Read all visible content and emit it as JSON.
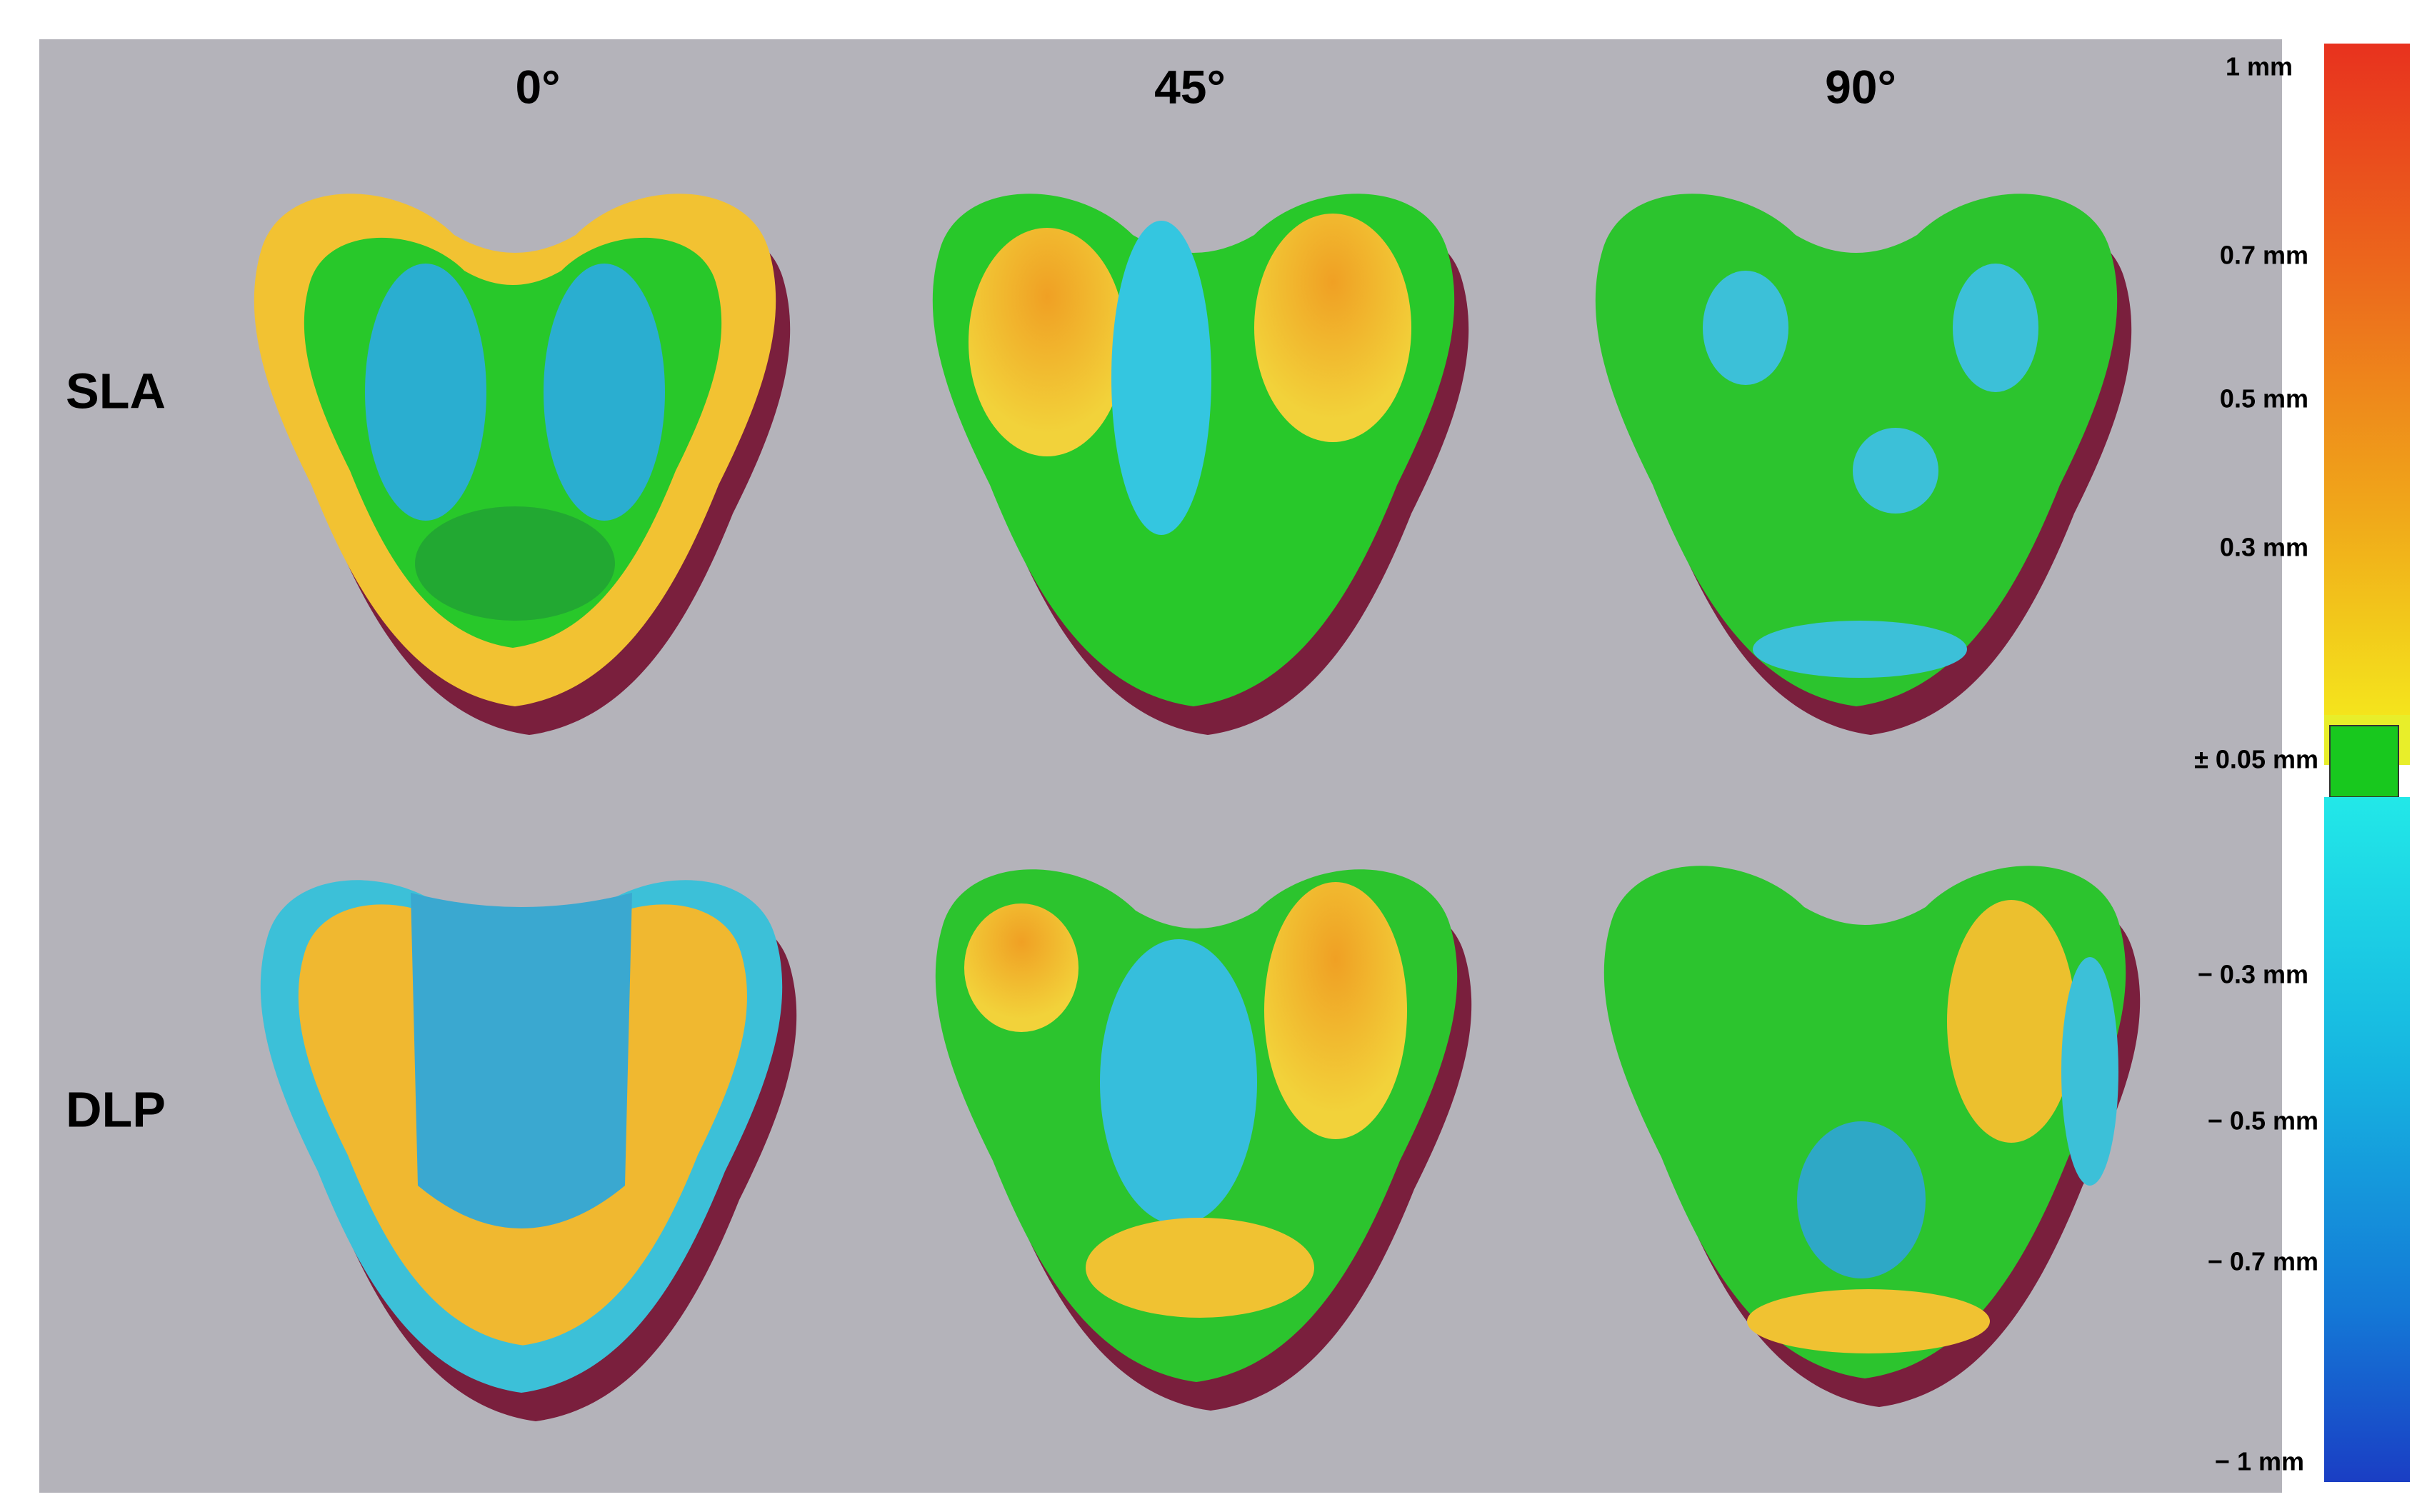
{
  "column_headers": [
    "0°",
    "45°",
    "90°"
  ],
  "row_labels": [
    "SLA",
    "DLP"
  ],
  "color_scale": {
    "labels": [
      "1 mm",
      "0.7 mm",
      "0.5 mm",
      "0.3 mm",
      "± 0.05 mm",
      "− 0.3 mm",
      "− 0.5 mm",
      "− 0.7 mm",
      "− 1 mm"
    ]
  }
}
